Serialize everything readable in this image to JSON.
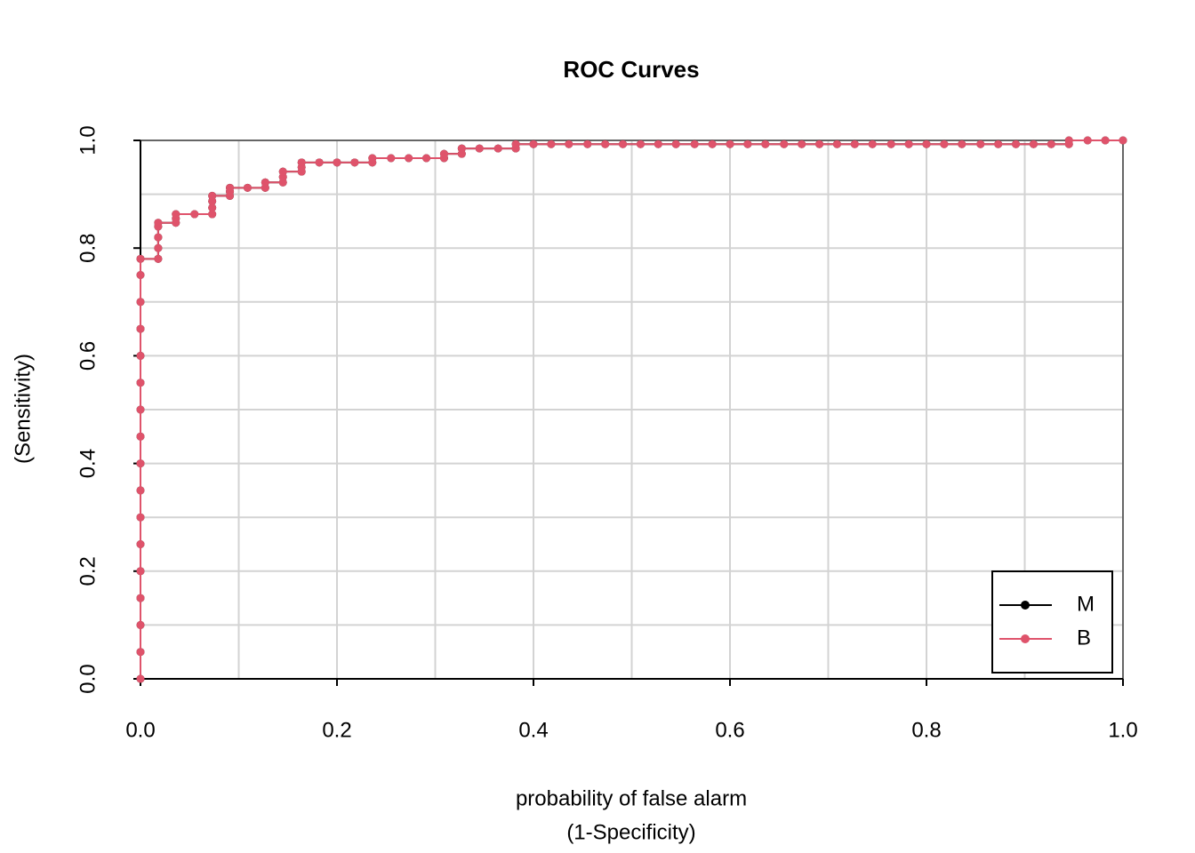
{
  "chart_data": {
    "type": "line",
    "title": "ROC Curves",
    "xlabel": [
      "probability of false alarm",
      "(1-Specificity)"
    ],
    "ylabel": "(Sensitivity)",
    "xlim": [
      0,
      1
    ],
    "ylim": [
      0,
      1
    ],
    "xticks": [
      {
        "value": 0,
        "label": "0.0"
      },
      0.2,
      0.4,
      0.6,
      0.8,
      {
        "value": 1,
        "label": "1.0"
      }
    ],
    "yticks": [
      {
        "value": 0,
        "label": "0.0"
      },
      0.2,
      0.4,
      0.6,
      0.8,
      {
        "value": 1,
        "label": "1.0"
      }
    ],
    "grid": [
      0,
      0.1,
      0.2,
      0.3,
      0.4,
      0.5,
      0.6,
      0.7,
      0.8,
      0.9,
      1
    ],
    "legend": "bottom-right",
    "x": [
      0,
      0,
      0,
      0,
      0,
      0,
      0,
      0,
      0,
      0,
      0,
      0,
      0,
      0,
      0,
      0,
      0,
      0.018,
      0.018,
      0.018,
      0.018,
      0.018,
      0.036,
      0.036,
      0.036,
      0.055,
      0.073,
      0.073,
      0.073,
      0.073,
      0.091,
      0.091,
      0.091,
      0.109,
      0.127,
      0.127,
      0.145,
      0.145,
      0.145,
      0.164,
      0.164,
      0.164,
      0.182,
      0.2,
      0.218,
      0.236,
      0.236,
      0.255,
      0.273,
      0.291,
      0.309,
      0.309,
      0.327,
      0.327,
      0.345,
      0.364,
      0.382,
      0.382,
      0.4,
      0.418,
      0.436,
      0.455,
      0.473,
      0.491,
      0.509,
      0.527,
      0.545,
      0.564,
      0.582,
      0.6,
      0.618,
      0.636,
      0.655,
      0.673,
      0.691,
      0.709,
      0.727,
      0.745,
      0.764,
      0.782,
      0.8,
      0.818,
      0.836,
      0.855,
      0.873,
      0.891,
      0.909,
      0.927,
      0.945,
      0.945,
      0.964,
      0.982,
      1
    ],
    "series": [
      {
        "name": "M",
        "color": "#000000",
        "values": [
          0,
          0.05,
          0.1,
          0.15,
          0.2,
          0.25,
          0.3,
          0.35,
          0.4,
          0.45,
          0.5,
          0.55,
          0.6,
          0.65,
          0.7,
          0.75,
          0.78,
          0.78,
          0.8,
          0.82,
          0.84,
          0.847,
          0.847,
          0.855,
          0.863,
          0.863,
          0.863,
          0.875,
          0.887,
          0.897,
          0.897,
          0.905,
          0.912,
          0.912,
          0.912,
          0.922,
          0.922,
          0.932,
          0.942,
          0.942,
          0.95,
          0.959,
          0.959,
          0.959,
          0.959,
          0.959,
          0.967,
          0.967,
          0.967,
          0.967,
          0.967,
          0.975,
          0.975,
          0.985,
          0.985,
          0.985,
          0.985,
          0.993,
          0.993,
          0.993,
          0.993,
          0.993,
          0.993,
          0.993,
          0.993,
          0.993,
          0.993,
          0.993,
          0.993,
          0.993,
          0.993,
          0.993,
          0.993,
          0.993,
          0.993,
          0.993,
          0.993,
          0.993,
          0.993,
          0.993,
          0.993,
          0.993,
          0.993,
          0.993,
          0.993,
          0.993,
          0.993,
          0.993,
          0.993,
          1,
          1,
          1,
          1
        ]
      },
      {
        "name": "B",
        "color": "#df536b",
        "values": [
          0,
          0.05,
          0.1,
          0.15,
          0.2,
          0.25,
          0.3,
          0.35,
          0.4,
          0.45,
          0.5,
          0.55,
          0.6,
          0.65,
          0.7,
          0.75,
          0.78,
          0.78,
          0.8,
          0.82,
          0.84,
          0.847,
          0.847,
          0.855,
          0.863,
          0.863,
          0.863,
          0.875,
          0.887,
          0.897,
          0.897,
          0.905,
          0.912,
          0.912,
          0.912,
          0.922,
          0.922,
          0.932,
          0.942,
          0.942,
          0.95,
          0.959,
          0.959,
          0.959,
          0.959,
          0.959,
          0.967,
          0.967,
          0.967,
          0.967,
          0.967,
          0.975,
          0.975,
          0.985,
          0.985,
          0.985,
          0.985,
          0.993,
          0.993,
          0.993,
          0.993,
          0.993,
          0.993,
          0.993,
          0.993,
          0.993,
          0.993,
          0.993,
          0.993,
          0.993,
          0.993,
          0.993,
          0.993,
          0.993,
          0.993,
          0.993,
          0.993,
          0.993,
          0.993,
          0.993,
          0.993,
          0.993,
          0.993,
          0.993,
          0.993,
          0.993,
          0.993,
          0.993,
          0.993,
          1,
          1,
          1,
          1
        ]
      }
    ]
  }
}
